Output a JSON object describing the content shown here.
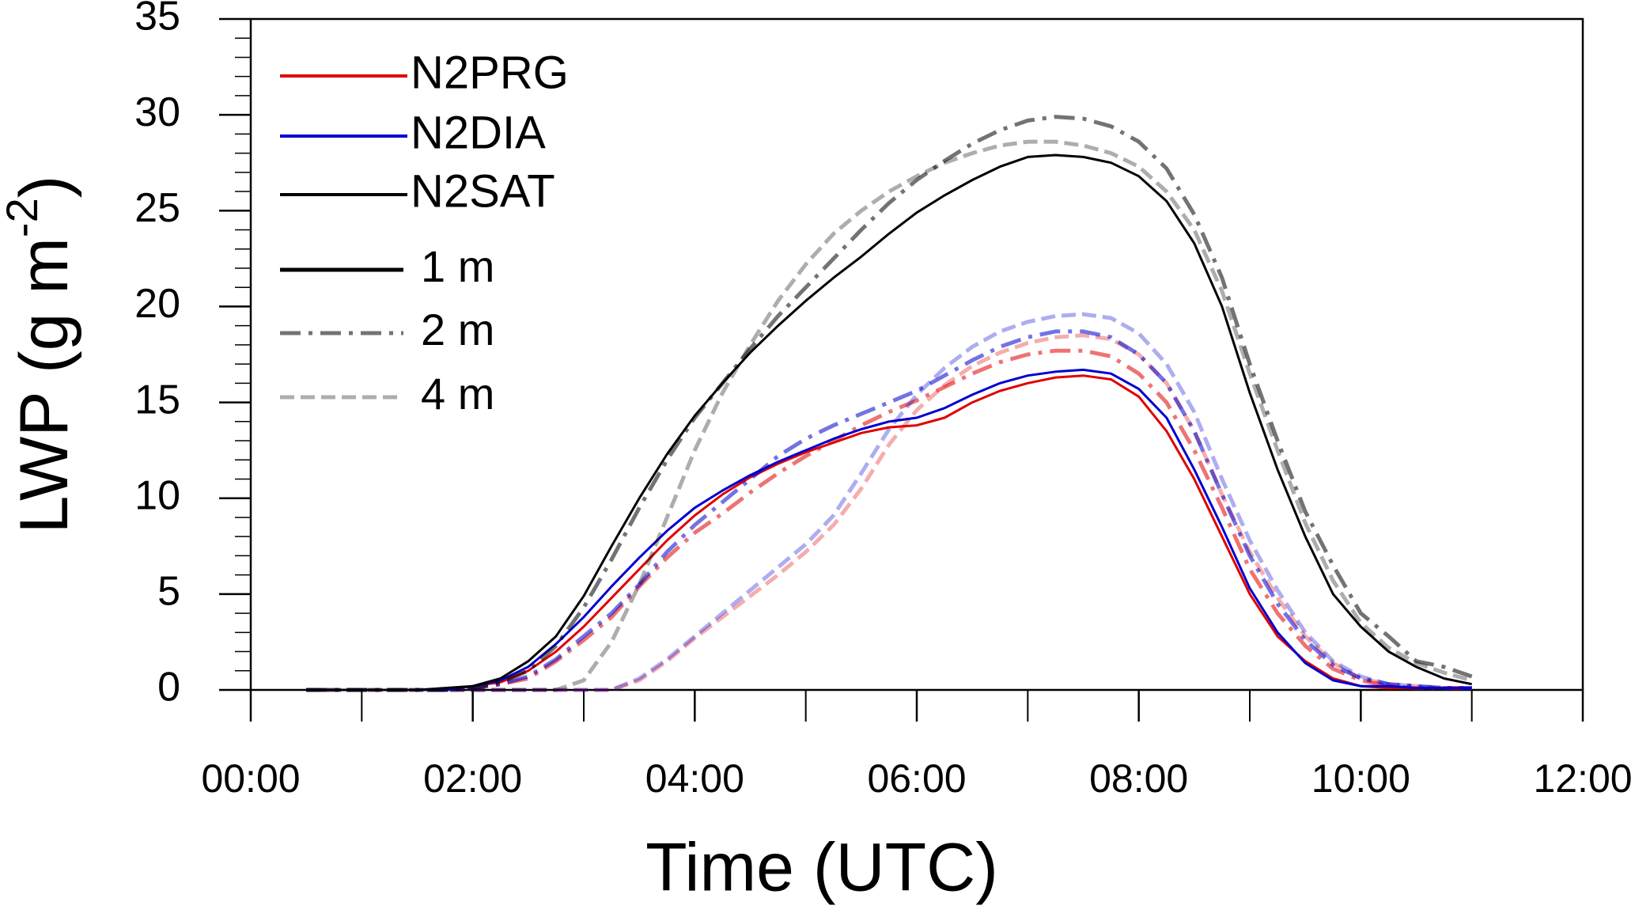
{
  "chart_data": {
    "type": "line",
    "xlabel": "Time (UTC)",
    "ylabel": "LWP (g m",
    "ylabel_sup": "-2",
    "ylabel_end": ")",
    "x": [
      0.5,
      0.75,
      1,
      1.25,
      1.5,
      1.75,
      2,
      2.25,
      2.5,
      2.75,
      3,
      3.25,
      3.5,
      3.75,
      4,
      4.25,
      4.5,
      4.75,
      5,
      5.25,
      5.5,
      5.75,
      6,
      6.25,
      6.5,
      6.75,
      7,
      7.25,
      7.5,
      7.75,
      8,
      8.25,
      8.5,
      8.75,
      9,
      9.25,
      9.5,
      9.75,
      10,
      10.25,
      10.5,
      10.75,
      11
    ],
    "xlim": [
      0,
      12
    ],
    "xticks": [
      {
        "value": 0,
        "label": "00:00"
      },
      {
        "value": 2,
        "label": "02:00"
      },
      {
        "value": 4,
        "label": "04:00"
      },
      {
        "value": 6,
        "label": "06:00"
      },
      {
        "value": 8,
        "label": "08:00"
      },
      {
        "value": 10,
        "label": "10:00"
      },
      {
        "value": 12,
        "label": "12:00"
      }
    ],
    "xminorticks": [
      1,
      3,
      5,
      7,
      9,
      11
    ],
    "ylim": [
      0,
      35
    ],
    "yticks": [
      0,
      5,
      10,
      15,
      20,
      25,
      30,
      35
    ],
    "yminorticks": [
      1,
      2,
      3,
      4,
      6,
      7,
      8,
      9,
      11,
      12,
      13,
      14,
      16,
      17,
      18,
      19,
      21,
      22,
      23,
      24,
      26,
      27,
      28,
      29,
      31,
      32,
      33,
      34
    ],
    "resolutions": [
      {
        "name": "1 m",
        "dash": "solid",
        "opacity": 1
      },
      {
        "name": "2 m",
        "dash": "dashdot",
        "opacity": 0.55
      },
      {
        "name": "4 m",
        "dash": "dash",
        "opacity": 0.32
      }
    ],
    "experiments": [
      {
        "name": "N2PRG",
        "color": "#e00000",
        "runs": [
          [
            0,
            0,
            0,
            0,
            0,
            0,
            0.2,
            0.4,
            1,
            2,
            3.3,
            4.8,
            6.3,
            7.8,
            9.1,
            10.2,
            11.1,
            11.8,
            12.4,
            12.9,
            13.4,
            13.7,
            13.8,
            14.2,
            15,
            15.6,
            16,
            16.3,
            16.4,
            16.2,
            15.3,
            13.5,
            11,
            8,
            5,
            2.8,
            1.5,
            0.6,
            0.2,
            0.1,
            0.1,
            0.1,
            0.1
          ],
          [
            0,
            0,
            0,
            0,
            0,
            0,
            0.1,
            0.3,
            0.6,
            1.5,
            2.6,
            3.8,
            5.4,
            6.9,
            8.2,
            9.2,
            10.3,
            11.3,
            12.2,
            13,
            13.8,
            14.5,
            15.1,
            15.8,
            16.5,
            17.1,
            17.5,
            17.7,
            17.7,
            17.4,
            16.5,
            15,
            12.5,
            9.5,
            6.3,
            4,
            2.3,
            1.1,
            0.5,
            0.2,
            0.1,
            0.1,
            0.1
          ],
          [
            0,
            0,
            0,
            0,
            0,
            0,
            0,
            0,
            0,
            0,
            0,
            0,
            0.5,
            1.5,
            2.7,
            3.8,
            4.9,
            6,
            7.2,
            8.6,
            10.5,
            12.8,
            14.6,
            15.9,
            16.9,
            17.6,
            18.1,
            18.4,
            18.5,
            18.3,
            17.5,
            16,
            13.5,
            10.2,
            7.2,
            4.8,
            2.8,
            1.4,
            0.6,
            0.3,
            0.2,
            0.1,
            0.1
          ]
        ]
      },
      {
        "name": "N2DIA",
        "color": "#0000d0",
        "runs": [
          [
            0,
            0,
            0,
            0,
            0,
            0,
            0.2,
            0.5,
            1.2,
            2.4,
            3.8,
            5.4,
            6.9,
            8.3,
            9.5,
            10.4,
            11.2,
            11.9,
            12.5,
            13.1,
            13.6,
            14,
            14.2,
            14.7,
            15.4,
            16,
            16.4,
            16.6,
            16.7,
            16.5,
            15.7,
            14.2,
            11.5,
            8.5,
            5.3,
            3,
            1.4,
            0.5,
            0.2,
            0.2,
            0.1,
            0.1,
            0.1
          ],
          [
            0,
            0,
            0,
            0,
            0,
            0,
            0.1,
            0.3,
            0.7,
            1.6,
            2.8,
            4,
            5.5,
            7.2,
            8.6,
            9.8,
            11,
            12.2,
            13.1,
            13.8,
            14.4,
            15,
            15.6,
            16.4,
            17.2,
            17.9,
            18.4,
            18.7,
            18.7,
            18.4,
            17.5,
            16,
            13.5,
            10.2,
            7,
            4.5,
            2.6,
            1.3,
            0.6,
            0.3,
            0.2,
            0.1,
            0.1
          ],
          [
            0,
            0,
            0,
            0,
            0,
            0,
            0,
            0,
            0,
            0,
            0,
            0,
            0.6,
            1.6,
            2.8,
            4,
            5.2,
            6.4,
            7.6,
            9.1,
            11.3,
            13.6,
            15.4,
            16.8,
            17.9,
            18.7,
            19.2,
            19.5,
            19.6,
            19.4,
            18.6,
            17,
            14.5,
            11,
            7.8,
            5.2,
            3,
            1.5,
            0.7,
            0.3,
            0.2,
            0.1,
            0.1
          ]
        ]
      },
      {
        "name": "N2SAT",
        "color": "#000000",
        "runs": [
          [
            0,
            0,
            0,
            0,
            0,
            0.1,
            0.2,
            0.6,
            1.5,
            2.8,
            4.9,
            7.5,
            10,
            12.3,
            14.3,
            16,
            17.6,
            19,
            20.3,
            21.5,
            22.6,
            23.8,
            24.9,
            25.8,
            26.6,
            27.3,
            27.8,
            27.9,
            27.8,
            27.5,
            26.8,
            25.5,
            23.3,
            20,
            15.5,
            11.5,
            8,
            5,
            3.3,
            2,
            1.2,
            0.6,
            0.3
          ],
          [
            0,
            0,
            0,
            0,
            0,
            0,
            0.1,
            0.4,
            1,
            2.3,
            4.3,
            6.8,
            9.5,
            12,
            14.2,
            16,
            17.8,
            19.5,
            21,
            22.5,
            24,
            25.4,
            26.6,
            27.6,
            28.5,
            29.2,
            29.7,
            29.9,
            29.8,
            29.4,
            28.6,
            27.2,
            24.8,
            21.5,
            17,
            13,
            9.3,
            6.5,
            4,
            2.8,
            1.5,
            1.2,
            0.7
          ],
          [
            0,
            0,
            0,
            0,
            0,
            0,
            0,
            0,
            0,
            0,
            0.5,
            2.5,
            5.5,
            9,
            12.5,
            15.5,
            18,
            20.3,
            22.2,
            23.8,
            25,
            26,
            26.8,
            27.5,
            28,
            28.4,
            28.6,
            28.6,
            28.4,
            28,
            27.3,
            26,
            24,
            20.8,
            16.5,
            12.5,
            8.7,
            5.7,
            3.5,
            2.2,
            1.4,
            0.9,
            0.5
          ]
        ]
      }
    ]
  }
}
